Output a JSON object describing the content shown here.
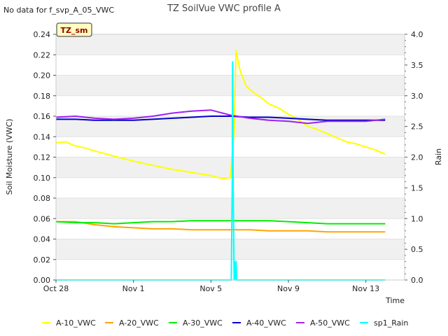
{
  "header": {
    "title": "TZ SoilVue VWC profile A",
    "no_data_note": "No data for f_svp_A_05_VWC",
    "badge": "TZ_sm"
  },
  "chart_data": {
    "type": "line",
    "title": "TZ SoilVue VWC profile A",
    "xlabel": "Time",
    "ylabel": "Soil Moisture (VWC)",
    "y2label": "Rain",
    "x_ticks": [
      "Oct 28",
      "Nov 1",
      "Nov 5",
      "Nov 9",
      "Nov 13"
    ],
    "x_tick_days": [
      0,
      4,
      8,
      12,
      16
    ],
    "xlim_days": [
      0,
      18
    ],
    "ylim": [
      0.0,
      0.24
    ],
    "y_ticks": [
      0.0,
      0.02,
      0.04,
      0.06,
      0.08,
      0.1,
      0.12,
      0.14,
      0.16,
      0.18,
      0.2,
      0.22,
      0.24
    ],
    "y2lim": [
      0.0,
      4.0
    ],
    "y2_ticks": [
      0.0,
      0.5,
      1.0,
      1.5,
      2.0,
      2.5,
      3.0,
      3.5,
      4.0
    ],
    "grid": "horizontal bands",
    "legend_position": "bottom",
    "series": [
      {
        "name": "A-10_VWC",
        "color": "#ffff00",
        "axis": "left",
        "x": [
          0.0,
          0.5,
          1.0,
          1.5,
          2.0,
          3.0,
          4.0,
          5.0,
          6.0,
          7.0,
          8.0,
          8.6,
          9.0,
          9.2,
          9.3,
          9.5,
          9.8,
          10.2,
          10.6,
          11.0,
          11.5,
          12.0,
          12.5,
          13.0,
          13.5,
          14.0,
          14.5,
          15.0,
          15.5,
          16.0,
          16.5,
          17.0
        ],
        "y": [
          0.134,
          0.135,
          0.131,
          0.129,
          0.126,
          0.121,
          0.116,
          0.112,
          0.108,
          0.105,
          0.102,
          0.099,
          0.1,
          0.145,
          0.224,
          0.205,
          0.19,
          0.183,
          0.178,
          0.172,
          0.168,
          0.162,
          0.157,
          0.15,
          0.147,
          0.143,
          0.139,
          0.135,
          0.133,
          0.13,
          0.127,
          0.123
        ]
      },
      {
        "name": "A-20_VWC",
        "color": "#ffa500",
        "axis": "left",
        "x": [
          0.0,
          1.0,
          2.0,
          3.0,
          4.0,
          5.0,
          6.0,
          7.0,
          8.0,
          9.0,
          10.0,
          11.0,
          12.0,
          13.0,
          14.0,
          15.0,
          16.0,
          17.0
        ],
        "y": [
          0.057,
          0.057,
          0.054,
          0.052,
          0.051,
          0.05,
          0.05,
          0.049,
          0.049,
          0.049,
          0.049,
          0.048,
          0.048,
          0.048,
          0.047,
          0.047,
          0.047,
          0.047
        ]
      },
      {
        "name": "A-30_VWC",
        "color": "#00ee00",
        "axis": "left",
        "x": [
          0.0,
          1.0,
          2.0,
          3.0,
          4.0,
          5.0,
          6.0,
          7.0,
          8.0,
          9.0,
          10.0,
          11.0,
          12.0,
          13.0,
          14.0,
          15.0,
          16.0,
          17.0
        ],
        "y": [
          0.057,
          0.056,
          0.056,
          0.055,
          0.056,
          0.057,
          0.057,
          0.058,
          0.058,
          0.058,
          0.058,
          0.058,
          0.057,
          0.056,
          0.055,
          0.055,
          0.055,
          0.055
        ]
      },
      {
        "name": "A-40_VWC",
        "color": "#0000cc",
        "axis": "left",
        "x": [
          0.0,
          1.0,
          2.0,
          3.0,
          4.0,
          5.0,
          6.0,
          7.0,
          8.0,
          9.0,
          10.0,
          11.0,
          12.0,
          13.0,
          14.0,
          15.0,
          16.0,
          17.0
        ],
        "y": [
          0.157,
          0.157,
          0.156,
          0.156,
          0.156,
          0.157,
          0.158,
          0.159,
          0.16,
          0.16,
          0.159,
          0.159,
          0.158,
          0.157,
          0.156,
          0.156,
          0.156,
          0.156
        ]
      },
      {
        "name": "A-50_VWC",
        "color": "#a020f0",
        "axis": "left",
        "x": [
          0.0,
          1.0,
          2.0,
          3.0,
          4.0,
          5.0,
          6.0,
          7.0,
          8.0,
          9.0,
          10.0,
          11.0,
          12.0,
          13.0,
          14.0,
          15.0,
          16.0,
          17.0
        ],
        "y": [
          0.159,
          0.16,
          0.158,
          0.157,
          0.158,
          0.16,
          0.163,
          0.165,
          0.166,
          0.161,
          0.158,
          0.156,
          0.155,
          0.153,
          0.155,
          0.155,
          0.155,
          0.157
        ]
      },
      {
        "name": "sp1_Rain",
        "color": "#00ffff",
        "axis": "right",
        "x": [
          0.0,
          9.05,
          9.1,
          9.12,
          9.15,
          9.2,
          9.22,
          9.25,
          9.28,
          9.3,
          9.33,
          9.4,
          17.0
        ],
        "y": [
          0.0,
          0.0,
          1.6,
          3.55,
          1.5,
          0.0,
          0.3,
          0.25,
          0.0,
          0.3,
          0.0,
          0.0,
          0.0
        ]
      }
    ]
  }
}
